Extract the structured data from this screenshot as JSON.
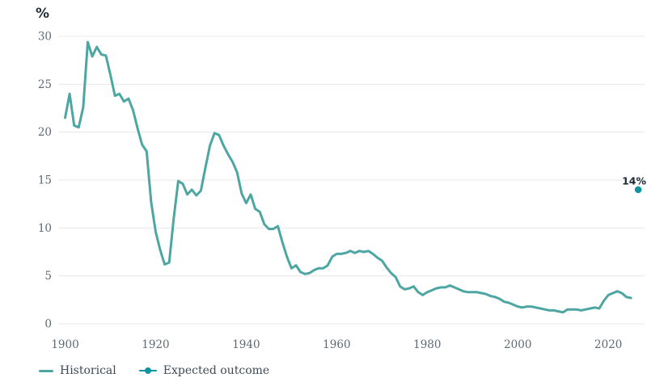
{
  "chart_data": {
    "type": "line",
    "ylabel": "%",
    "y_ticks": [
      0,
      5,
      10,
      15,
      20,
      25,
      30
    ],
    "x_ticks": [
      1900,
      1920,
      1940,
      1960,
      1980,
      2000,
      2020
    ],
    "x_range": [
      1900,
      2028
    ],
    "ylim": [
      0,
      30
    ],
    "grid": "horizontal",
    "legend_position": "bottom-left",
    "series": [
      {
        "name": "Historical",
        "start_year": 1900,
        "values": [
          21.5,
          24.0,
          20.7,
          20.5,
          22.6,
          29.4,
          27.9,
          28.9,
          28.1,
          28.0,
          26.0,
          23.8,
          24.0,
          23.2,
          23.5,
          22.3,
          20.4,
          18.7,
          18.0,
          12.7,
          9.6,
          7.7,
          6.2,
          6.4,
          11.0,
          14.9,
          14.6,
          13.5,
          14.0,
          13.4,
          13.9,
          16.3,
          18.6,
          19.9,
          19.7,
          18.6,
          17.7,
          16.9,
          15.8,
          13.6,
          12.6,
          13.5,
          12.0,
          11.7,
          10.4,
          9.9,
          9.9,
          10.2,
          8.5,
          7.0,
          5.8,
          6.1,
          5.4,
          5.2,
          5.3,
          5.6,
          5.8,
          5.8,
          6.1,
          7.0,
          7.3,
          7.3,
          7.4,
          7.6,
          7.4,
          7.6,
          7.5,
          7.6,
          7.3,
          6.9,
          6.6,
          5.9,
          5.3,
          4.9,
          3.9,
          3.6,
          3.7,
          3.9,
          3.3,
          3.0,
          3.3,
          3.5,
          3.7,
          3.8,
          3.8,
          4.0,
          3.8,
          3.6,
          3.4,
          3.3,
          3.3,
          3.3,
          3.2,
          3.1,
          2.9,
          2.8,
          2.6,
          2.3,
          2.2,
          2.0,
          1.8,
          1.7,
          1.8,
          1.8,
          1.7,
          1.6,
          1.5,
          1.4,
          1.4,
          1.3,
          1.2,
          1.5,
          1.5,
          1.5,
          1.4,
          1.5,
          1.6,
          1.7,
          1.6,
          2.4,
          3.0,
          3.2,
          3.4,
          3.2,
          2.8,
          2.7
        ]
      }
    ],
    "expected_outcome": {
      "name": "Expected outcome",
      "year": 2026.6,
      "value": 14,
      "label": "14%"
    },
    "legend": [
      {
        "label": "Historical",
        "marker": "line"
      },
      {
        "label": "Expected outcome",
        "marker": "line-dot"
      }
    ],
    "colors": {
      "historical": "#4EA6A3",
      "expected": "#0F95A0",
      "grid": "#e8e8e8",
      "tick_text": "#5d6974",
      "annotation_text": "#1f2b35",
      "legend_text": "#3e4a54"
    }
  }
}
